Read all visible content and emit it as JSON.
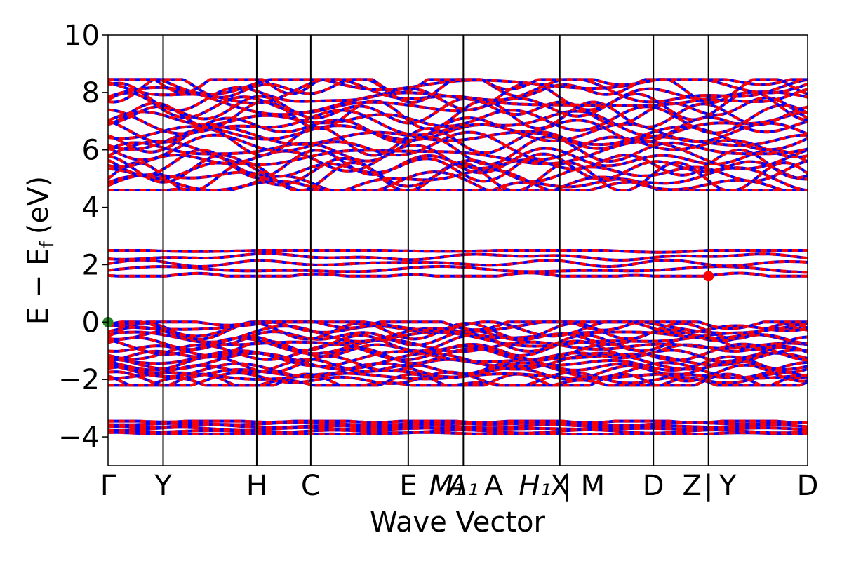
{
  "chart_data": {
    "type": "line",
    "title": "",
    "xlabel": "Wave Vector",
    "ylabel": "E − E",
    "ylabel_sub": "f",
    "ylabel_unit": "(eV)",
    "ylim": [
      -5,
      10
    ],
    "yticks": [
      -4,
      -2,
      0,
      2,
      4,
      6,
      8,
      10
    ],
    "ytick_labels": [
      "−4",
      "−2",
      "0",
      "2",
      "4",
      "6",
      "8",
      "10"
    ],
    "xlim": [
      0,
      12.7
    ],
    "grid": false,
    "legend": "none",
    "high_symmetry_points": [
      {
        "label": "Γ",
        "pos": 0.0
      },
      {
        "label": "Y",
        "pos": 1.0
      },
      {
        "label": "H",
        "pos": 2.7
      },
      {
        "label": "C",
        "pos": 3.68
      },
      {
        "label": "E",
        "pos": 5.45
      },
      {
        "label": "M₁",
        "pos": 6.15
      },
      {
        "label": "A₁",
        "pos": 6.45
      },
      {
        "label": "A",
        "pos": 7.0
      },
      {
        "label": "H₁",
        "pos": 7.75
      },
      {
        "label": "X",
        "pos": 8.2
      },
      {
        "label": "|",
        "pos": 8.33
      },
      {
        "label": "M",
        "pos": 8.8
      },
      {
        "label": "D",
        "pos": 9.9
      },
      {
        "label": "Z",
        "pos": 10.6
      },
      {
        "label": "|",
        "pos": 10.9
      },
      {
        "label": "Y",
        "pos": 11.25
      },
      {
        "label": "D",
        "pos": 12.7
      }
    ],
    "segment_boundaries": [
      0.0,
      1.0,
      2.7,
      3.68,
      5.45,
      6.45,
      8.2,
      9.9,
      10.9,
      12.7
    ],
    "band_groups": [
      {
        "name": "deep valence",
        "emin": -3.9,
        "emax": -3.45,
        "count": 6
      },
      {
        "name": "valence",
        "emin": -2.2,
        "emax": 0.0,
        "count": 22
      },
      {
        "name": "middle",
        "emin": 1.6,
        "emax": 2.5,
        "count": 5
      },
      {
        "name": "conduction",
        "emin": 4.6,
        "emax": 8.45,
        "count": 26
      }
    ],
    "band_colors": {
      "spin_up": "#ff0000",
      "spin_down": "#0000ff"
    },
    "markers": [
      {
        "name": "vbm",
        "x": 0.0,
        "y": 0.0,
        "color": "#228b22"
      },
      {
        "name": "cbm",
        "x": 10.9,
        "y": 1.6,
        "color": "#ff0000"
      }
    ]
  }
}
